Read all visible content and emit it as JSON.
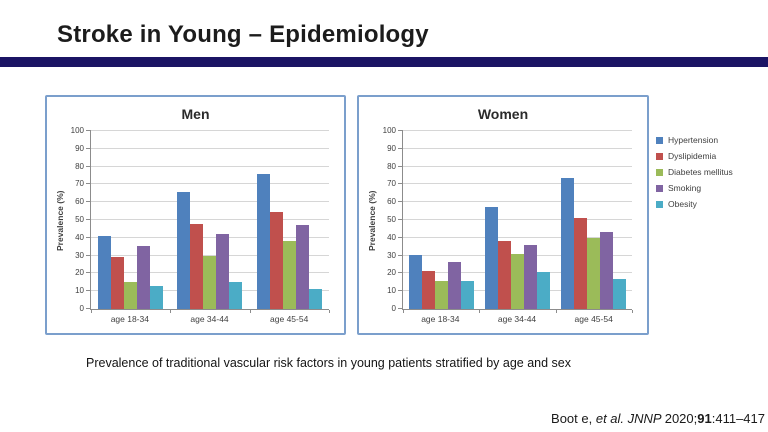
{
  "slide": {
    "title": "Stroke in Young – Epidemiology",
    "accent_color": "#1b1464",
    "caption": "Prevalence of traditional vascular risk factors in young patients stratified by age and sex",
    "citation": {
      "author": "Boot e, ",
      "etal_journal": "et al. JNNP ",
      "year": "2020;",
      "volume": "91",
      "pages": ":411–417"
    }
  },
  "legend": {
    "position": "right",
    "entries": [
      {
        "label": "Hypertension",
        "color": "#4f81bd"
      },
      {
        "label": "Dyslipidemia",
        "color": "#c0504d"
      },
      {
        "label": "Diabetes mellitus",
        "color": "#9bbb59"
      },
      {
        "label": "Smoking",
        "color": "#8064a2"
      },
      {
        "label": "Obesity",
        "color": "#4bacc6"
      }
    ]
  },
  "chart_data": [
    {
      "type": "bar",
      "title": "Men",
      "xlabel": "",
      "ylabel": "Prevalence (%)",
      "ylim": [
        0,
        100
      ],
      "ytick_step": 10,
      "grid": true,
      "categories": [
        "age 18-34",
        "age 34-44",
        "age 45-54"
      ],
      "series": [
        {
          "name": "Hypertension",
          "color": "#4f81bd",
          "values": [
            41,
            66,
            76
          ]
        },
        {
          "name": "Dyslipidemia",
          "color": "#c0504d",
          "values": [
            29,
            48,
            54.5
          ]
        },
        {
          "name": "Diabetes mellitus",
          "color": "#9bbb59",
          "values": [
            15,
            30,
            38
          ]
        },
        {
          "name": "Smoking",
          "color": "#8064a2",
          "values": [
            35.5,
            42,
            47
          ]
        },
        {
          "name": "Obesity",
          "color": "#4bacc6",
          "values": [
            13,
            15,
            11.5
          ]
        }
      ]
    },
    {
      "type": "bar",
      "title": "Women",
      "xlabel": "",
      "ylabel": "Prevalence (%)",
      "ylim": [
        0,
        100
      ],
      "ytick_step": 10,
      "grid": true,
      "categories": [
        "age 18-34",
        "age 34-44",
        "age 45-54"
      ],
      "series": [
        {
          "name": "Hypertension",
          "color": "#4f81bd",
          "values": [
            30.5,
            57.5,
            73.5
          ]
        },
        {
          "name": "Dyslipidemia",
          "color": "#c0504d",
          "values": [
            21.5,
            38,
            51
          ]
        },
        {
          "name": "Diabetes mellitus",
          "color": "#9bbb59",
          "values": [
            15.5,
            31,
            40
          ]
        },
        {
          "name": "Smoking",
          "color": "#8064a2",
          "values": [
            26.5,
            36,
            43.5
          ]
        },
        {
          "name": "Obesity",
          "color": "#4bacc6",
          "values": [
            15.5,
            21,
            17
          ]
        }
      ]
    }
  ]
}
